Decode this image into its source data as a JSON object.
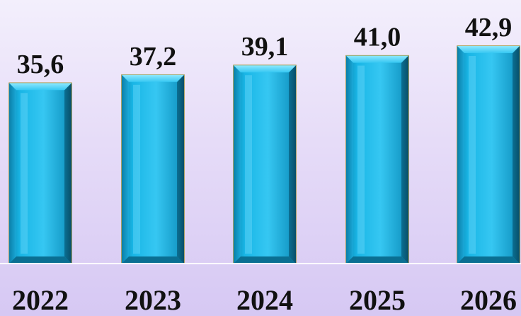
{
  "chart_data": {
    "type": "bar",
    "categories": [
      "2022",
      "2023",
      "2024",
      "2025",
      "2026"
    ],
    "values": [
      35.6,
      37.2,
      39.1,
      41.0,
      42.9
    ],
    "value_labels": [
      "35,6",
      "37,2",
      "39,1",
      "41,0",
      "42,9"
    ],
    "title": "",
    "xlabel": "",
    "ylabel": "",
    "ylim": [
      0,
      42.9
    ],
    "grid": false,
    "legend": "none",
    "colors": {
      "bar_fill": "#19b6e6",
      "bar_light": "#6fdcff",
      "bar_dark": "#0a6f92",
      "bar_edge": "#9c8f34",
      "baseline": "#ffffff"
    }
  }
}
